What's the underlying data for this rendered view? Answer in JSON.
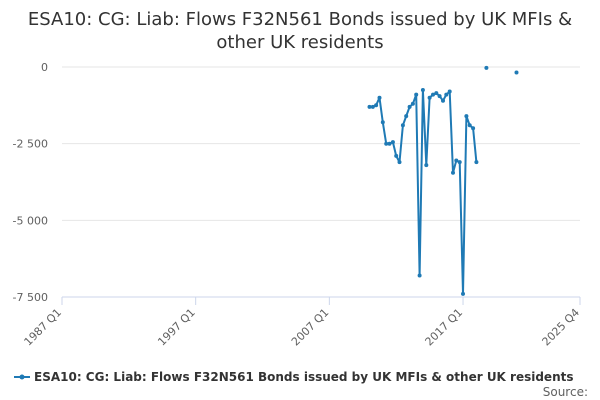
{
  "chart_data": {
    "type": "line",
    "title_line1": "ESA10: CG: Liab: Flows F32N561 Bonds issued by UK MFIs &",
    "title_line2": "other UK residents",
    "xlabel": "",
    "ylabel": "",
    "ylim": [
      -7500,
      0
    ],
    "yticks": [
      0,
      -2500,
      -5000,
      -7500
    ],
    "ytick_labels": [
      "0",
      "-2 500",
      "-5 000",
      "-7 500"
    ],
    "xlim": [
      1987.0,
      2025.75
    ],
    "xticks": [
      1987.0,
      1997.0,
      2007.0,
      2017.0,
      2025.75
    ],
    "xtick_labels": [
      "1987 Q1",
      "1997 Q1",
      "2007 Q1",
      "2017 Q1",
      "2025 Q4"
    ],
    "grid": true,
    "legend_position": "bottom",
    "series": [
      {
        "name": "ESA10: CG: Liab: Flows F32N561 Bonds issued by UK MFIs & other UK residents",
        "color": "#1f7ab5",
        "segments": [
          [
            {
              "x": "2010 Q1",
              "y": -1300
            },
            {
              "x": "2010 Q2",
              "y": -1300
            },
            {
              "x": "2010 Q3",
              "y": -1250
            },
            {
              "x": "2010 Q4",
              "y": -1000
            },
            {
              "x": "2011 Q1",
              "y": -1800
            },
            {
              "x": "2011 Q2",
              "y": -2500
            },
            {
              "x": "2011 Q3",
              "y": -2500
            },
            {
              "x": "2011 Q4",
              "y": -2450
            },
            {
              "x": "2012 Q1",
              "y": -2900
            },
            {
              "x": "2012 Q2",
              "y": -3100
            },
            {
              "x": "2012 Q3",
              "y": -1900
            },
            {
              "x": "2012 Q4",
              "y": -1600
            },
            {
              "x": "2013 Q1",
              "y": -1300
            },
            {
              "x": "2013 Q2",
              "y": -1200
            },
            {
              "x": "2013 Q3",
              "y": -900
            },
            {
              "x": "2013 Q4",
              "y": -6800
            },
            {
              "x": "2014 Q1",
              "y": -750
            },
            {
              "x": "2014 Q2",
              "y": -3200
            },
            {
              "x": "2014 Q3",
              "y": -1000
            },
            {
              "x": "2014 Q4",
              "y": -900
            },
            {
              "x": "2015 Q1",
              "y": -850
            },
            {
              "x": "2015 Q2",
              "y": -950
            },
            {
              "x": "2015 Q3",
              "y": -1100
            },
            {
              "x": "2015 Q4",
              "y": -900
            },
            {
              "x": "2016 Q1",
              "y": -800
            },
            {
              "x": "2016 Q2",
              "y": -3450
            },
            {
              "x": "2016 Q3",
              "y": -3050
            },
            {
              "x": "2016 Q4",
              "y": -3100
            },
            {
              "x": "2017 Q1",
              "y": -7400
            },
            {
              "x": "2017 Q2",
              "y": -1600
            },
            {
              "x": "2017 Q3",
              "y": -1900
            },
            {
              "x": "2017 Q4",
              "y": -2000
            },
            {
              "x": "2018 Q1",
              "y": -3100
            }
          ],
          [
            {
              "x": "2018 Q4",
              "y": -30
            }
          ],
          [
            {
              "x": "2021 Q1",
              "y": -180
            }
          ]
        ]
      }
    ]
  },
  "footer": {
    "source_label": "Source:"
  }
}
